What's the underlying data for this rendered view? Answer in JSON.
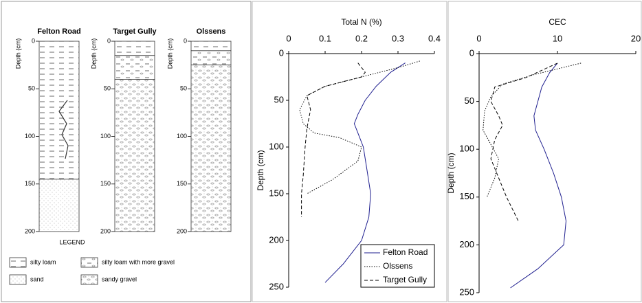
{
  "profiles": {
    "columns": [
      {
        "label": "Felton Road",
        "layers": [
          {
            "top": 0,
            "bottom": 145,
            "legend": 0
          },
          {
            "top": 145,
            "bottom": 200,
            "legend": 2
          }
        ]
      },
      {
        "label": "Target Gully",
        "layers": [
          {
            "top": 0,
            "bottom": 15,
            "legend": 0
          },
          {
            "top": 15,
            "bottom": 40,
            "legend": 1
          },
          {
            "top": 40,
            "bottom": 200,
            "legend": 3
          }
        ]
      },
      {
        "label": "Olssens",
        "layers": [
          {
            "top": 0,
            "bottom": 10,
            "legend": 0
          },
          {
            "top": 10,
            "bottom": 25,
            "legend": 1
          },
          {
            "top": 25,
            "bottom": 200,
            "legend": 3
          }
        ]
      }
    ],
    "y_label": "Depth (cm)",
    "ylim": [
      0,
      200
    ],
    "yticks": [
      0,
      50,
      100,
      150,
      200
    ],
    "legend": {
      "title": "LEGEND",
      "items": [
        "silty loam",
        "silty loam with more gravel",
        "sand",
        "sandy gravel"
      ]
    }
  },
  "chart_data": [
    {
      "type": "line",
      "title": "Total N (%)",
      "y_label": "Depth (cm)",
      "x_axis": "top",
      "invert_y": true,
      "xlim": [
        0,
        0.4
      ],
      "xticks": [
        0,
        0.1,
        0.2,
        0.3,
        0.4
      ],
      "ylim": [
        0,
        250
      ],
      "yticks": [
        0,
        50,
        100,
        150,
        200,
        250
      ],
      "legend": "lower right",
      "series": [
        {
          "name": "Felton Road",
          "color": "#1f1f8f",
          "style": "solid",
          "values": [
            0.32,
            0.28,
            0.24,
            0.21,
            0.19,
            0.18,
            0.19,
            0.205,
            0.215,
            0.225,
            0.22,
            0.2,
            0.15,
            0.1
          ],
          "depth": [
            10,
            20,
            35,
            50,
            65,
            75,
            85,
            100,
            125,
            150,
            175,
            200,
            225,
            245
          ]
        },
        {
          "name": "Olssens",
          "color": "#000000",
          "style": "dotted",
          "values": [
            0.36,
            0.3,
            0.2,
            0.1,
            0.05,
            0.03,
            0.04,
            0.07,
            0.14,
            0.2,
            0.19,
            0.12,
            0.05
          ],
          "depth": [
            8,
            15,
            25,
            35,
            45,
            60,
            75,
            85,
            90,
            100,
            115,
            135,
            150
          ]
        },
        {
          "name": "Target Gully",
          "color": "#000000",
          "style": "dashed",
          "values": [
            0.19,
            0.21,
            0.2,
            0.1,
            0.05,
            0.06,
            0.05,
            0.045,
            0.04,
            0.035,
            0.035
          ],
          "depth": [
            10,
            20,
            25,
            35,
            45,
            60,
            80,
            100,
            130,
            150,
            175
          ]
        }
      ]
    },
    {
      "type": "line",
      "title": "CEC",
      "y_label": "Depth (cm)",
      "x_axis": "top",
      "invert_y": true,
      "xlim": [
        0,
        20
      ],
      "xticks": [
        0,
        10,
        20
      ],
      "ylim": [
        0,
        250
      ],
      "yticks": [
        0,
        50,
        100,
        150,
        200,
        250
      ],
      "series": [
        {
          "color": "#1f1f8f",
          "style": "solid",
          "values": [
            10,
            9,
            8,
            7.5,
            7,
            7.2,
            8.3,
            9.5,
            10.5,
            11.1,
            10.8,
            7.5,
            4
          ],
          "depth": [
            10,
            20,
            35,
            50,
            65,
            80,
            100,
            125,
            150,
            175,
            200,
            225,
            245
          ]
        },
        {
          "color": "#000000",
          "style": "dotted",
          "values": [
            13,
            7,
            3,
            1.5,
            0.7,
            0.5,
            1.5,
            2.5,
            2,
            1
          ],
          "depth": [
            10,
            22,
            32,
            45,
            60,
            80,
            95,
            110,
            130,
            150
          ]
        },
        {
          "color": "#000000",
          "style": "dashed",
          "values": [
            10,
            6,
            2,
            1.5,
            2.5,
            3,
            2,
            1.5,
            2.5,
            3.5,
            5
          ],
          "depth": [
            10,
            25,
            35,
            50,
            65,
            75,
            90,
            110,
            130,
            150,
            175
          ]
        }
      ]
    }
  ]
}
